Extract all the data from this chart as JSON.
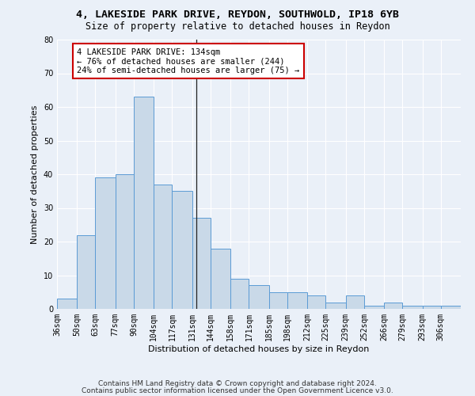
{
  "title1": "4, LAKESIDE PARK DRIVE, REYDON, SOUTHWOLD, IP18 6YB",
  "title2": "Size of property relative to detached houses in Reydon",
  "xlabel": "Distribution of detached houses by size in Reydon",
  "ylabel": "Number of detached properties",
  "categories": [
    "36sqm",
    "50sqm",
    "63sqm",
    "77sqm",
    "90sqm",
    "104sqm",
    "117sqm",
    "131sqm",
    "144sqm",
    "158sqm",
    "171sqm",
    "185sqm",
    "198sqm",
    "212sqm",
    "225sqm",
    "239sqm",
    "252sqm",
    "266sqm",
    "279sqm",
    "293sqm",
    "306sqm"
  ],
  "values": [
    3,
    22,
    39,
    40,
    63,
    37,
    35,
    27,
    18,
    9,
    7,
    5,
    5,
    4,
    2,
    4,
    1,
    2,
    1,
    1,
    1
  ],
  "bar_color": "#c9d9e8",
  "bar_edge_color": "#5b9bd5",
  "bin_edges": [
    36,
    50,
    63,
    77,
    90,
    104,
    117,
    131,
    144,
    158,
    171,
    185,
    198,
    212,
    225,
    239,
    252,
    266,
    279,
    293,
    306,
    320
  ],
  "annotation_line1": "4 LAKESIDE PARK DRIVE: 134sqm",
  "annotation_line2": "← 76% of detached houses are smaller (244)",
  "annotation_line3": "24% of semi-detached houses are larger (75) →",
  "annotation_box_color": "#ffffff",
  "annotation_border_color": "#cc0000",
  "vline_x": 134,
  "ylim": [
    0,
    80
  ],
  "yticks": [
    0,
    10,
    20,
    30,
    40,
    50,
    60,
    70,
    80
  ],
  "background_color": "#eaf0f8",
  "grid_color": "#ffffff",
  "footer1": "Contains HM Land Registry data © Crown copyright and database right 2024.",
  "footer2": "Contains public sector information licensed under the Open Government Licence v3.0.",
  "title_fontsize": 9.5,
  "subtitle_fontsize": 8.5,
  "axis_label_fontsize": 8,
  "tick_fontsize": 7,
  "annotation_fontsize": 7.5,
  "footer_fontsize": 6.5
}
